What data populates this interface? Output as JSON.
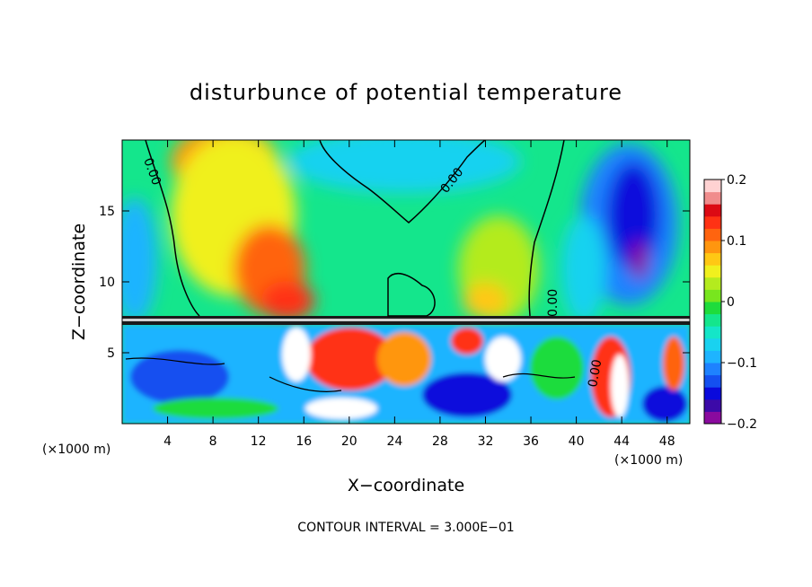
{
  "chart_data": {
    "type": "heatmap",
    "title": "disturbunce of potential temperature",
    "xlabel": "X−coordinate",
    "ylabel": "Z−coordinate",
    "x_unit_left": "(×1000 m)",
    "x_unit_right": "(×1000 m)",
    "xlim": [
      0,
      50
    ],
    "ylim": [
      0,
      20
    ],
    "x_ticks": [
      4,
      8,
      12,
      16,
      20,
      24,
      28,
      32,
      36,
      40,
      44,
      48
    ],
    "y_ticks": [
      5,
      10,
      15
    ],
    "colorbar": {
      "min": -0.2,
      "max": 0.2,
      "tick_values": [
        0.2,
        0.1,
        0,
        -0.1,
        -0.2
      ],
      "tick_labels": [
        "0.2",
        "0.1",
        "0",
        "−0.1",
        "−0.2"
      ],
      "colors": [
        "#8a0a9e",
        "#3c0aa8",
        "#0a0adc",
        "#1450f0",
        "#1e82ff",
        "#1eb4ff",
        "#19d2f0",
        "#14e6c8",
        "#14e68c",
        "#1edc3c",
        "#78e61e",
        "#b4eb1e",
        "#f0f01e",
        "#ffc814",
        "#ff960f",
        "#ff640f",
        "#ff3214",
        "#dc0a14",
        "#f08c8c",
        "#ffd2d2"
      ]
    },
    "contour_labels": [
      "0.00",
      "0.00",
      "0.00",
      "0.00"
    ],
    "footer": "CONTOUR INTERVAL = 3.000E−01"
  }
}
